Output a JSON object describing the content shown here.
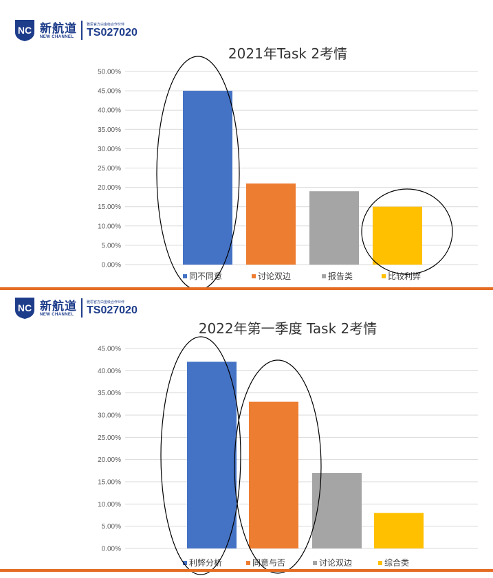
{
  "logo": {
    "cn": "新航道",
    "en": "NEW CHANNEL",
    "small": "雅思官方白金级合作伙伴",
    "code": "TS027020"
  },
  "chart_data": [
    {
      "type": "bar",
      "title": "2021年Task  2考情",
      "categories": [
        "同不同意",
        "讨论双边",
        "报告类",
        "比较利弊"
      ],
      "values": [
        45.0,
        21.0,
        19.0,
        15.0
      ],
      "colors": [
        "#4472c4",
        "#ed7d31",
        "#a5a5a5",
        "#ffc000"
      ],
      "ylim": [
        0,
        50
      ],
      "yticks": [
        "0.00%",
        "5.00%",
        "10.00%",
        "15.00%",
        "20.00%",
        "25.00%",
        "30.00%",
        "35.00%",
        "40.00%",
        "45.00%",
        "50.00%"
      ],
      "legend": "bottom",
      "grid": true
    },
    {
      "type": "bar",
      "title": "2022年第一季度 Task 2考情",
      "categories": [
        "利弊分析",
        "同意与否",
        "讨论双边",
        "综合类"
      ],
      "values": [
        42.0,
        33.0,
        17.0,
        8.0
      ],
      "colors": [
        "#4472c4",
        "#ed7d31",
        "#a5a5a5",
        "#ffc000"
      ],
      "ylim": [
        0,
        45
      ],
      "yticks": [
        "0.00%",
        "5.00%",
        "10.00%",
        "15.00%",
        "20.00%",
        "25.00%",
        "30.00%",
        "35.00%",
        "40.00%",
        "45.00%"
      ],
      "legend": "bottom",
      "grid": true
    }
  ]
}
